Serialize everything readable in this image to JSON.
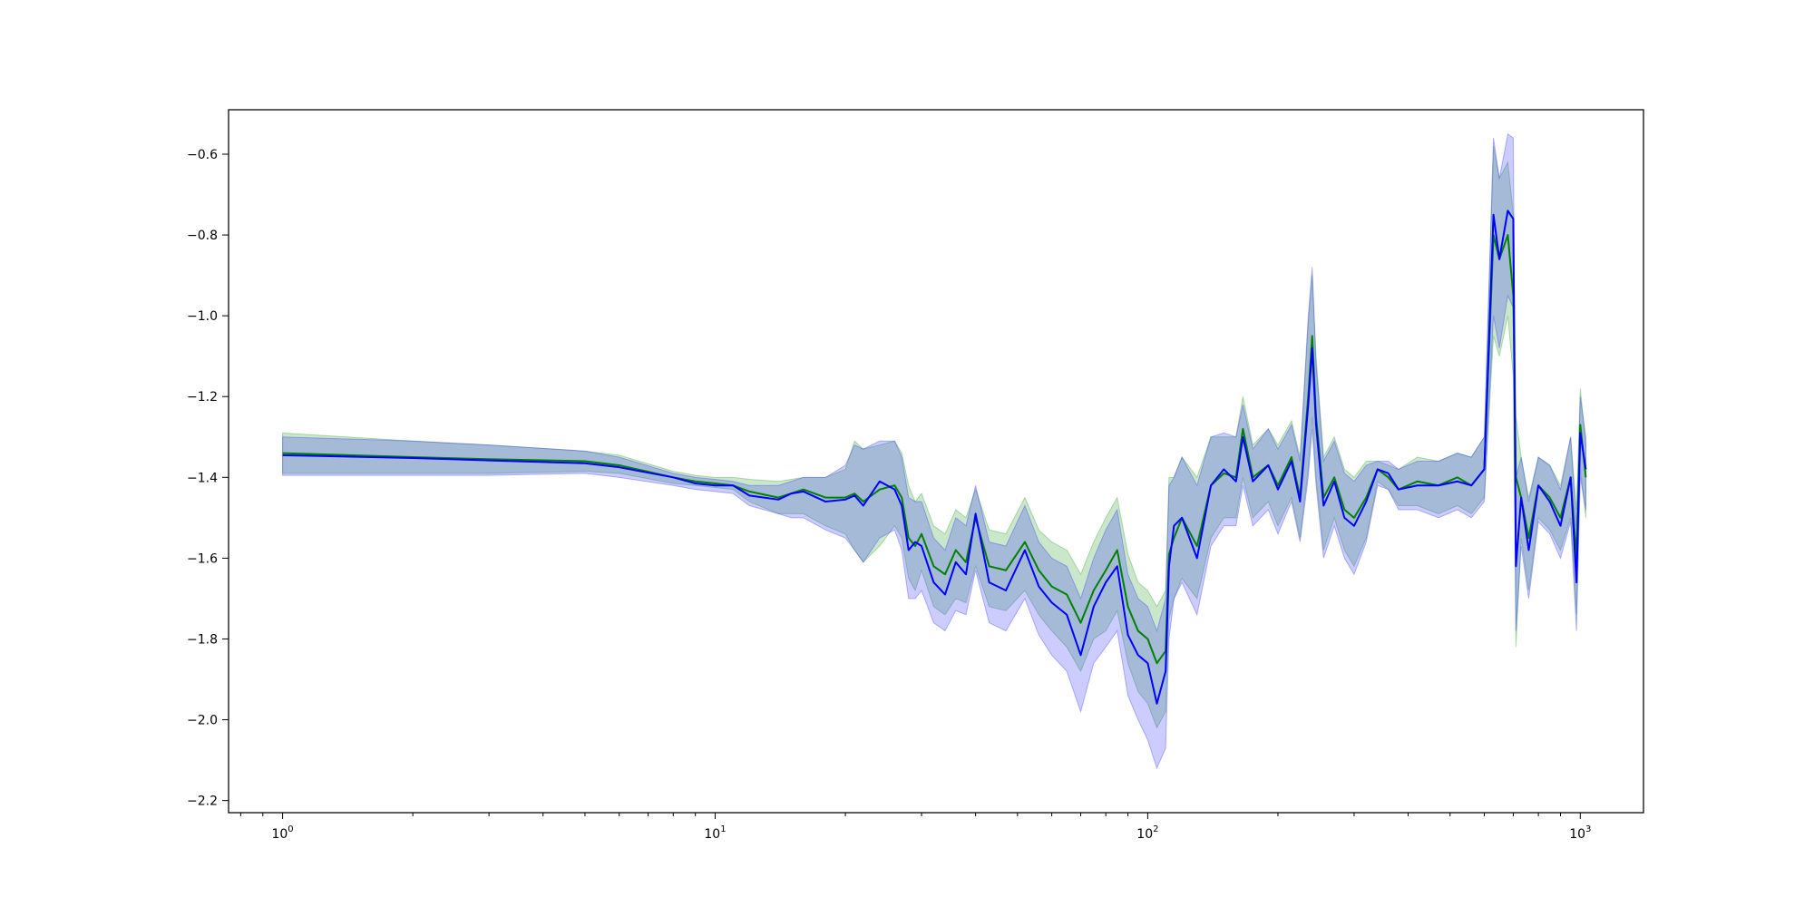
{
  "chart_data": {
    "type": "line",
    "title": "",
    "xlabel": "",
    "ylabel": "",
    "xscale": "log",
    "xlim": [
      0.75,
      1400
    ],
    "ylim": [
      -2.23,
      -0.49
    ],
    "grid": false,
    "legend": "none",
    "x_tick_values": [
      1,
      10,
      100,
      1000
    ],
    "x_tick_labels": [
      {
        "base": "10",
        "exp": "0"
      },
      {
        "base": "10",
        "exp": "1"
      },
      {
        "base": "10",
        "exp": "2"
      },
      {
        "base": "10",
        "exp": "3"
      }
    ],
    "y_tick_values": [
      -0.6,
      -0.8,
      -1.0,
      -1.2,
      -1.4,
      -1.6,
      -1.8,
      -2.0,
      -2.2
    ],
    "y_tick_labels": [
      "−0.6",
      "−0.8",
      "−1.0",
      "−1.2",
      "−1.4",
      "−1.6",
      "−1.8",
      "−2.0",
      "−2.2"
    ],
    "series": [
      {
        "color": "#008000",
        "band_color": "#2ca02c",
        "points": [
          [
            1,
            -1.34,
            -1.29,
            -1.39
          ],
          [
            2,
            -1.35,
            -1.31,
            -1.39
          ],
          [
            3,
            -1.355,
            -1.32,
            -1.39
          ],
          [
            5,
            -1.36,
            -1.335,
            -1.385
          ],
          [
            6,
            -1.37,
            -1.345,
            -1.39
          ],
          [
            8,
            -1.4,
            -1.385,
            -1.415
          ],
          [
            9,
            -1.41,
            -1.395,
            -1.42
          ],
          [
            10,
            -1.415,
            -1.4,
            -1.425
          ],
          [
            11,
            -1.42,
            -1.4,
            -1.43
          ],
          [
            12,
            -1.435,
            -1.405,
            -1.46
          ],
          [
            14,
            -1.45,
            -1.41,
            -1.49
          ],
          [
            16,
            -1.43,
            -1.4,
            -1.49
          ],
          [
            18,
            -1.45,
            -1.4,
            -1.52
          ],
          [
            20,
            -1.45,
            -1.38,
            -1.54
          ],
          [
            21,
            -1.44,
            -1.31,
            -1.58
          ],
          [
            22,
            -1.46,
            -1.33,
            -1.61
          ],
          [
            24,
            -1.43,
            -1.32,
            -1.57
          ],
          [
            26,
            -1.42,
            -1.31,
            -1.52
          ],
          [
            27,
            -1.45,
            -1.34,
            -1.55
          ],
          [
            28,
            -1.55,
            -1.42,
            -1.65
          ],
          [
            29,
            -1.57,
            -1.46,
            -1.68
          ],
          [
            30,
            -1.54,
            -1.44,
            -1.63
          ],
          [
            32,
            -1.62,
            -1.52,
            -1.72
          ],
          [
            34,
            -1.64,
            -1.54,
            -1.74
          ],
          [
            36,
            -1.58,
            -1.48,
            -1.7
          ],
          [
            38,
            -1.61,
            -1.5,
            -1.71
          ],
          [
            40,
            -1.5,
            -1.43,
            -1.62
          ],
          [
            43,
            -1.62,
            -1.53,
            -1.72
          ],
          [
            47,
            -1.63,
            -1.54,
            -1.73
          ],
          [
            52,
            -1.56,
            -1.45,
            -1.68
          ],
          [
            56,
            -1.63,
            -1.53,
            -1.74
          ],
          [
            60,
            -1.67,
            -1.56,
            -1.78
          ],
          [
            65,
            -1.69,
            -1.58,
            -1.82
          ],
          [
            70,
            -1.76,
            -1.64,
            -1.88
          ],
          [
            75,
            -1.68,
            -1.56,
            -1.8
          ],
          [
            80,
            -1.63,
            -1.5,
            -1.78
          ],
          [
            85,
            -1.58,
            -1.45,
            -1.73
          ],
          [
            90,
            -1.72,
            -1.59,
            -1.86
          ],
          [
            95,
            -1.78,
            -1.66,
            -1.93
          ],
          [
            100,
            -1.8,
            -1.68,
            -1.96
          ],
          [
            105,
            -1.86,
            -1.72,
            -2.02
          ],
          [
            110,
            -1.83,
            -1.68,
            -1.98
          ],
          [
            112,
            -1.59,
            -1.4,
            -1.75
          ],
          [
            115,
            -1.55,
            -1.4,
            -1.7
          ],
          [
            120,
            -1.5,
            -1.35,
            -1.65
          ],
          [
            130,
            -1.57,
            -1.4,
            -1.7
          ],
          [
            140,
            -1.42,
            -1.3,
            -1.55
          ],
          [
            150,
            -1.39,
            -1.3,
            -1.5
          ],
          [
            160,
            -1.4,
            -1.3,
            -1.5
          ],
          [
            166,
            -1.28,
            -1.2,
            -1.4
          ],
          [
            175,
            -1.4,
            -1.32,
            -1.5
          ],
          [
            190,
            -1.37,
            -1.28,
            -1.46
          ],
          [
            200,
            -1.42,
            -1.32,
            -1.52
          ],
          [
            215,
            -1.35,
            -1.26,
            -1.45
          ],
          [
            225,
            -1.45,
            -1.35,
            -1.55
          ],
          [
            235,
            -1.2,
            -1.02,
            -1.38
          ],
          [
            240,
            -1.05,
            -0.9,
            -1.25
          ],
          [
            245,
            -1.25,
            -1.1,
            -1.4
          ],
          [
            255,
            -1.45,
            -1.35,
            -1.58
          ],
          [
            270,
            -1.4,
            -1.3,
            -1.5
          ],
          [
            285,
            -1.48,
            -1.38,
            -1.58
          ],
          [
            300,
            -1.5,
            -1.4,
            -1.62
          ],
          [
            320,
            -1.45,
            -1.36,
            -1.55
          ],
          [
            340,
            -1.38,
            -1.36,
            -1.41
          ],
          [
            360,
            -1.4,
            -1.37,
            -1.43
          ],
          [
            380,
            -1.43,
            -1.38,
            -1.47
          ],
          [
            420,
            -1.41,
            -1.35,
            -1.47
          ],
          [
            470,
            -1.42,
            -1.36,
            -1.49
          ],
          [
            520,
            -1.4,
            -1.34,
            -1.47
          ],
          [
            560,
            -1.42,
            -1.35,
            -1.49
          ],
          [
            600,
            -1.38,
            -1.3,
            -1.45
          ],
          [
            630,
            -0.8,
            -0.58,
            -1.05
          ],
          [
            650,
            -0.86,
            -0.66,
            -1.1
          ],
          [
            680,
            -0.8,
            -0.62,
            -1.0
          ],
          [
            700,
            -0.95,
            -0.75,
            -1.15
          ],
          [
            710,
            -1.4,
            -1.25,
            -1.82
          ],
          [
            730,
            -1.45,
            -1.35,
            -1.55
          ],
          [
            760,
            -1.55,
            -1.45,
            -1.68
          ],
          [
            800,
            -1.42,
            -1.35,
            -1.5
          ],
          [
            850,
            -1.45,
            -1.37,
            -1.53
          ],
          [
            900,
            -1.5,
            -1.42,
            -1.58
          ],
          [
            950,
            -1.4,
            -1.3,
            -1.5
          ],
          [
            980,
            -1.6,
            -1.48,
            -1.74
          ],
          [
            1000,
            -1.27,
            -1.18,
            -1.38
          ],
          [
            1030,
            -1.4,
            -1.32,
            -1.5
          ]
        ]
      },
      {
        "color": "#0000ff",
        "band_color": "#3333ff",
        "points": [
          [
            1,
            -1.345,
            -1.3,
            -1.395
          ],
          [
            2,
            -1.352,
            -1.31,
            -1.395
          ],
          [
            3,
            -1.358,
            -1.32,
            -1.395
          ],
          [
            5,
            -1.365,
            -1.335,
            -1.39
          ],
          [
            6,
            -1.375,
            -1.35,
            -1.4
          ],
          [
            8,
            -1.4,
            -1.39,
            -1.42
          ],
          [
            9,
            -1.415,
            -1.4,
            -1.43
          ],
          [
            10,
            -1.42,
            -1.405,
            -1.435
          ],
          [
            11,
            -1.42,
            -1.41,
            -1.44
          ],
          [
            12,
            -1.445,
            -1.42,
            -1.47
          ],
          [
            14,
            -1.455,
            -1.42,
            -1.49
          ],
          [
            15,
            -1.44,
            -1.41,
            -1.5
          ],
          [
            16,
            -1.435,
            -1.4,
            -1.5
          ],
          [
            18,
            -1.46,
            -1.4,
            -1.53
          ],
          [
            20,
            -1.455,
            -1.37,
            -1.55
          ],
          [
            21,
            -1.445,
            -1.32,
            -1.58
          ],
          [
            22,
            -1.47,
            -1.33,
            -1.61
          ],
          [
            24,
            -1.41,
            -1.31,
            -1.55
          ],
          [
            26,
            -1.43,
            -1.31,
            -1.53
          ],
          [
            27,
            -1.47,
            -1.35,
            -1.58
          ],
          [
            28,
            -1.58,
            -1.45,
            -1.7
          ],
          [
            29,
            -1.56,
            -1.46,
            -1.7
          ],
          [
            30,
            -1.57,
            -1.46,
            -1.68
          ],
          [
            32,
            -1.66,
            -1.55,
            -1.76
          ],
          [
            34,
            -1.69,
            -1.58,
            -1.78
          ],
          [
            36,
            -1.61,
            -1.5,
            -1.73
          ],
          [
            38,
            -1.64,
            -1.52,
            -1.74
          ],
          [
            40,
            -1.49,
            -1.42,
            -1.63
          ],
          [
            43,
            -1.66,
            -1.56,
            -1.76
          ],
          [
            47,
            -1.68,
            -1.57,
            -1.78
          ],
          [
            52,
            -1.58,
            -1.47,
            -1.7
          ],
          [
            56,
            -1.67,
            -1.56,
            -1.79
          ],
          [
            60,
            -1.71,
            -1.6,
            -1.84
          ],
          [
            65,
            -1.74,
            -1.62,
            -1.88
          ],
          [
            70,
            -1.84,
            -1.7,
            -1.98
          ],
          [
            75,
            -1.72,
            -1.6,
            -1.86
          ],
          [
            80,
            -1.66,
            -1.53,
            -1.82
          ],
          [
            85,
            -1.62,
            -1.48,
            -1.78
          ],
          [
            90,
            -1.79,
            -1.64,
            -1.94
          ],
          [
            95,
            -1.84,
            -1.7,
            -2.0
          ],
          [
            100,
            -1.86,
            -1.72,
            -2.05
          ],
          [
            105,
            -1.96,
            -1.78,
            -2.12
          ],
          [
            110,
            -1.88,
            -1.7,
            -2.07
          ],
          [
            112,
            -1.62,
            -1.42,
            -1.8
          ],
          [
            115,
            -1.52,
            -1.4,
            -1.7
          ],
          [
            120,
            -1.5,
            -1.35,
            -1.66
          ],
          [
            130,
            -1.6,
            -1.42,
            -1.74
          ],
          [
            140,
            -1.42,
            -1.3,
            -1.57
          ],
          [
            150,
            -1.38,
            -1.29,
            -1.52
          ],
          [
            160,
            -1.41,
            -1.3,
            -1.52
          ],
          [
            166,
            -1.3,
            -1.22,
            -1.42
          ],
          [
            175,
            -1.41,
            -1.33,
            -1.52
          ],
          [
            190,
            -1.37,
            -1.28,
            -1.48
          ],
          [
            200,
            -1.43,
            -1.33,
            -1.54
          ],
          [
            215,
            -1.36,
            -1.27,
            -1.46
          ],
          [
            225,
            -1.46,
            -1.36,
            -1.56
          ],
          [
            235,
            -1.22,
            -1.0,
            -1.4
          ],
          [
            240,
            -1.08,
            -0.88,
            -1.28
          ],
          [
            245,
            -1.27,
            -1.12,
            -1.42
          ],
          [
            255,
            -1.47,
            -1.36,
            -1.6
          ],
          [
            270,
            -1.41,
            -1.31,
            -1.52
          ],
          [
            285,
            -1.5,
            -1.39,
            -1.6
          ],
          [
            300,
            -1.52,
            -1.41,
            -1.64
          ],
          [
            320,
            -1.46,
            -1.37,
            -1.56
          ],
          [
            340,
            -1.38,
            -1.36,
            -1.42
          ],
          [
            360,
            -1.39,
            -1.36,
            -1.43
          ],
          [
            380,
            -1.43,
            -1.38,
            -1.48
          ],
          [
            420,
            -1.42,
            -1.36,
            -1.48
          ],
          [
            470,
            -1.42,
            -1.36,
            -1.5
          ],
          [
            520,
            -1.41,
            -1.34,
            -1.48
          ],
          [
            560,
            -1.42,
            -1.35,
            -1.5
          ],
          [
            600,
            -1.38,
            -1.3,
            -1.46
          ],
          [
            630,
            -0.75,
            -0.56,
            -1.0
          ],
          [
            650,
            -0.86,
            -0.66,
            -1.08
          ],
          [
            680,
            -0.74,
            -0.55,
            -0.95
          ],
          [
            700,
            -0.76,
            -0.56,
            -0.98
          ],
          [
            710,
            -1.62,
            -1.4,
            -1.78
          ],
          [
            730,
            -1.45,
            -1.35,
            -1.57
          ],
          [
            760,
            -1.58,
            -1.46,
            -1.7
          ],
          [
            800,
            -1.42,
            -1.35,
            -1.51
          ],
          [
            850,
            -1.46,
            -1.37,
            -1.54
          ],
          [
            900,
            -1.52,
            -1.43,
            -1.6
          ],
          [
            950,
            -1.4,
            -1.3,
            -1.51
          ],
          [
            980,
            -1.66,
            -1.52,
            -1.78
          ],
          [
            1000,
            -1.29,
            -1.2,
            -1.4
          ],
          [
            1030,
            -1.38,
            -1.3,
            -1.48
          ]
        ]
      }
    ]
  }
}
